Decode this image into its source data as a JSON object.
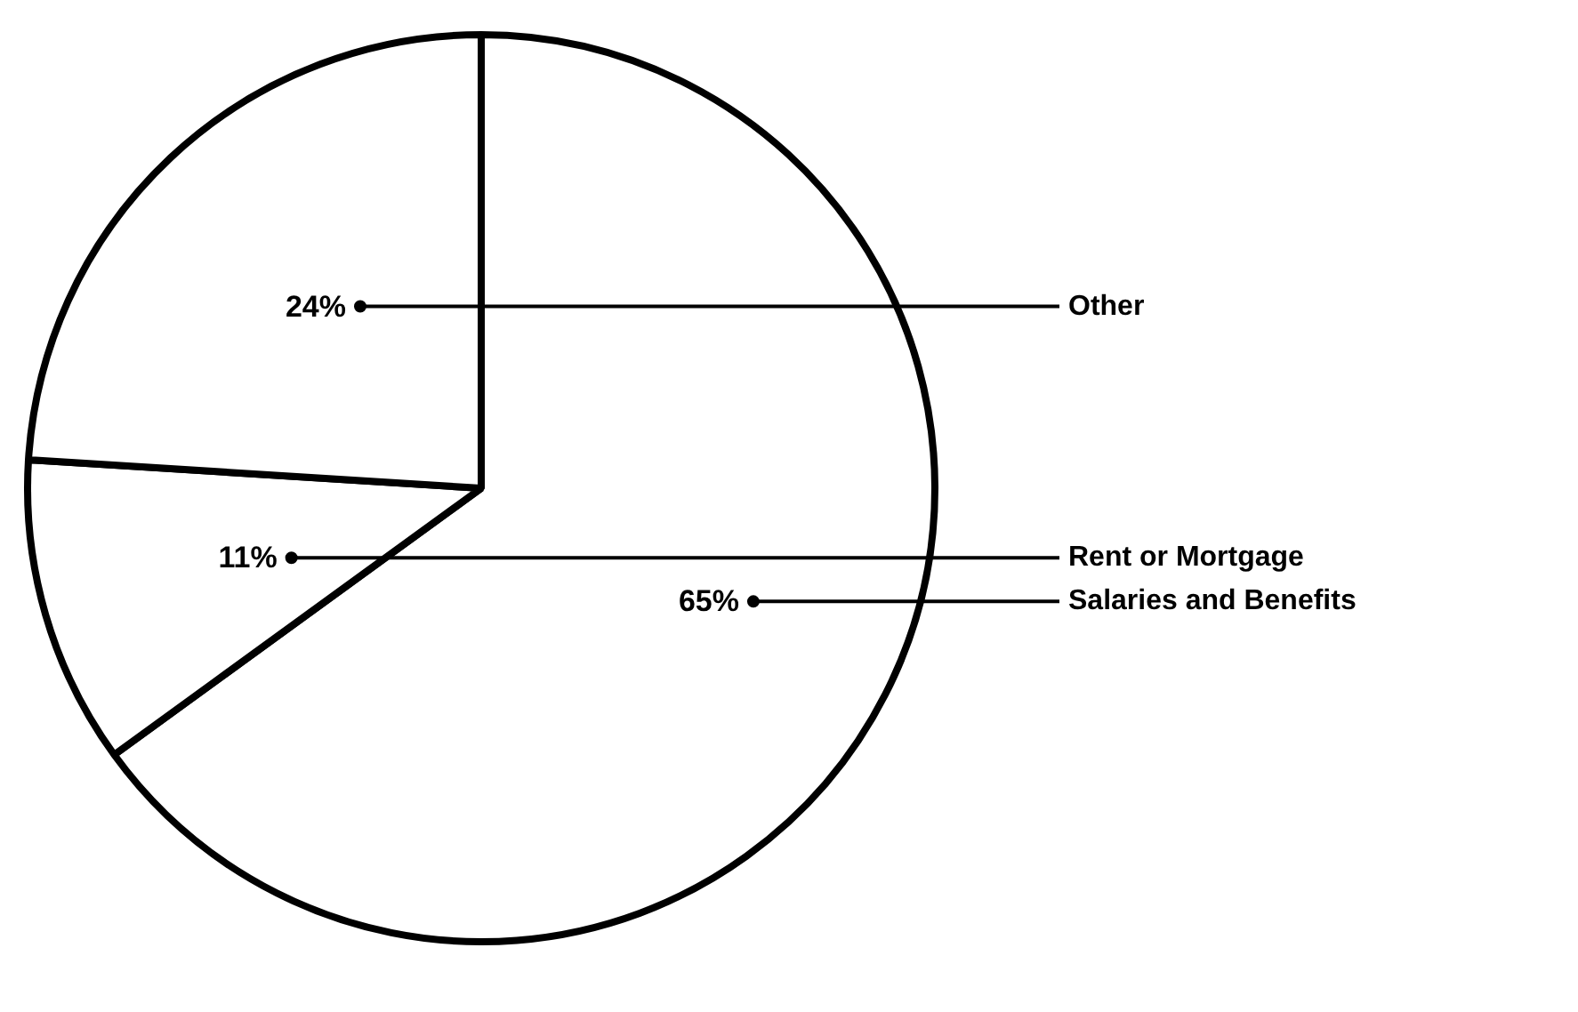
{
  "chart_data": {
    "type": "pie",
    "categories": [
      "Salaries and Benefits",
      "Rent or Mortgage",
      "Other"
    ],
    "values": [
      65,
      11,
      24
    ],
    "colors": [
      "#ffffff",
      "#ffffff",
      "#ffffff"
    ],
    "value_labels": [
      "65%",
      "11%",
      "24%"
    ]
  }
}
